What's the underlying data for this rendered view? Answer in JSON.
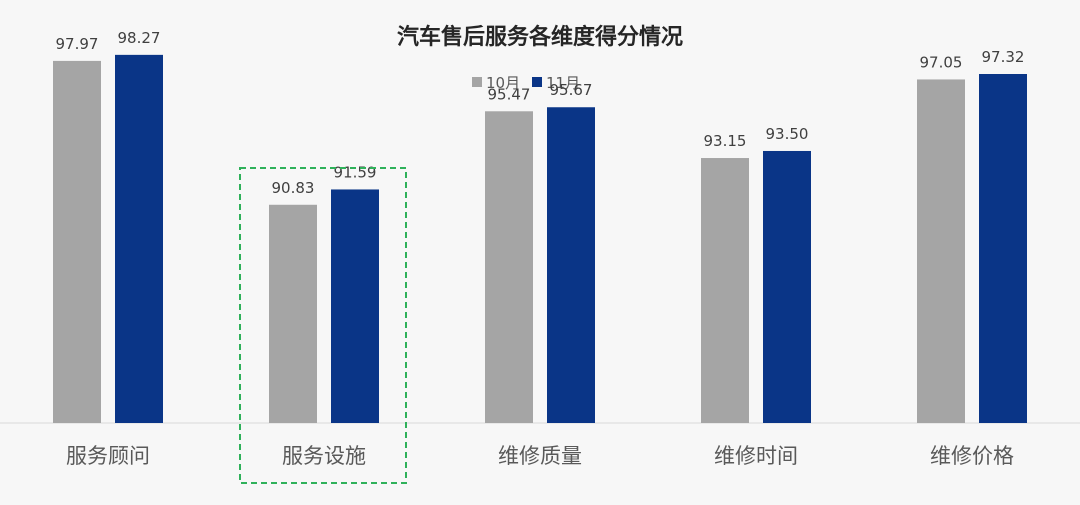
{
  "chart_data": {
    "type": "bar",
    "title": "汽车售后服务各维度得分情况",
    "categories": [
      "服务顾问",
      "服务设施",
      "维修质量",
      "维修时间",
      "维修价格"
    ],
    "series": [
      {
        "name": "10月",
        "color": "#a5a5a5",
        "values": [
          97.97,
          90.83,
          95.47,
          93.15,
          97.05
        ]
      },
      {
        "name": "11月",
        "color": "#0a3587",
        "values": [
          98.27,
          91.59,
          95.67,
          93.5,
          97.32
        ]
      }
    ],
    "value_labels": [
      [
        "97.97",
        "90.83",
        "95.47",
        "93.15",
        "97.05"
      ],
      [
        "98.27",
        "91.59",
        "95.67",
        "93.50",
        "97.32"
      ]
    ],
    "ylim": [
      80,
      100
    ],
    "grid": false,
    "legend_position": "top-center",
    "highlighted_category": "服务设施",
    "highlight_color": "#2fb15a"
  }
}
